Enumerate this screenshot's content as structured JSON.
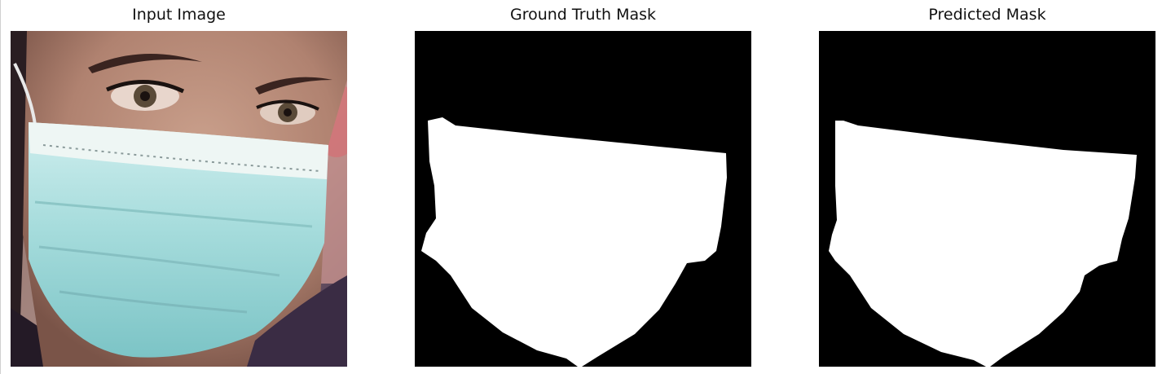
{
  "figure": {
    "panels": [
      {
        "title": "Input Image"
      },
      {
        "title": "Ground Truth Mask"
      },
      {
        "title": "Predicted Mask"
      }
    ]
  },
  "colors": {
    "mask_foreground": "#ffffff",
    "mask_background": "#000000",
    "surgical_mask": "#a8dcdc",
    "skin": "#b48a78",
    "background": "#ffffff"
  }
}
